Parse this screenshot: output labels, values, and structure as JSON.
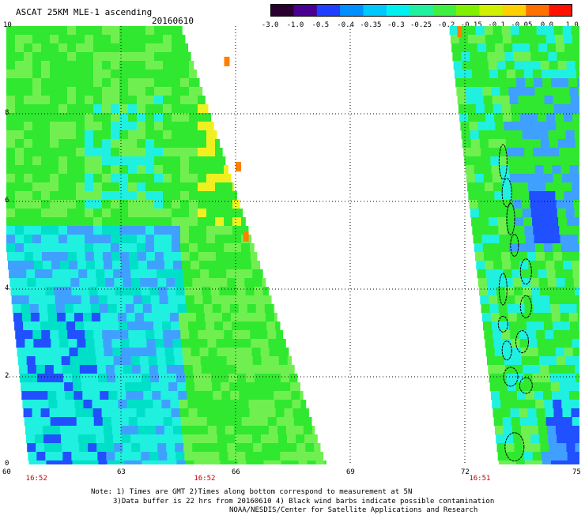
{
  "header": {
    "title": "ASCAT 25KM MLE-1 ascending",
    "date": "20160610"
  },
  "colorbar": {
    "ticks": [
      "-3.0",
      "-1.0",
      "-0.5",
      "-0.4",
      "-0.35",
      "-0.3",
      "-0.25",
      "-0.2",
      "-0.15",
      "-0.1",
      "-0.05",
      "0.0",
      "1.0"
    ],
    "colors": [
      "#2a0030",
      "#4a0090",
      "#2040ff",
      "#0090ff",
      "#00c8ff",
      "#00f0f0",
      "#20f0a0",
      "#40f040",
      "#80f000",
      "#d0f000",
      "#ffd000",
      "#ff7000",
      "#ff1000"
    ]
  },
  "map": {
    "x_ticks": [
      "60",
      "63",
      "66",
      "69",
      "72",
      "75"
    ],
    "y_ticks": [
      "0",
      "2",
      "4",
      "6",
      "8",
      "10"
    ],
    "x_range": [
      60,
      75
    ],
    "y_range": [
      0,
      10
    ],
    "time_labels": [
      {
        "lon": 60.8,
        "text": "16:52"
      },
      {
        "lon": 65.2,
        "text": "16:52"
      },
      {
        "lon": 72.4,
        "text": "16:51"
      }
    ],
    "swath_colors": {
      "green": "#30e830",
      "lightgreen": "#70f050",
      "cyan": "#20f0e0",
      "teal": "#00e0c8",
      "blue": "#40a0ff",
      "deepblue": "#2050ff",
      "yellow": "#f0f020",
      "orange": "#ff8000"
    }
  },
  "notes": [
    "Note: 1) Times are GMT 2)Times along bottom correspond to measurement at 5N",
    "3)Data buffer is 22 hrs from 20160610 4) Black wind barbs indicate possible contamination",
    "NOAA/NESDIS/Center for Satellite Applications and Research"
  ]
}
